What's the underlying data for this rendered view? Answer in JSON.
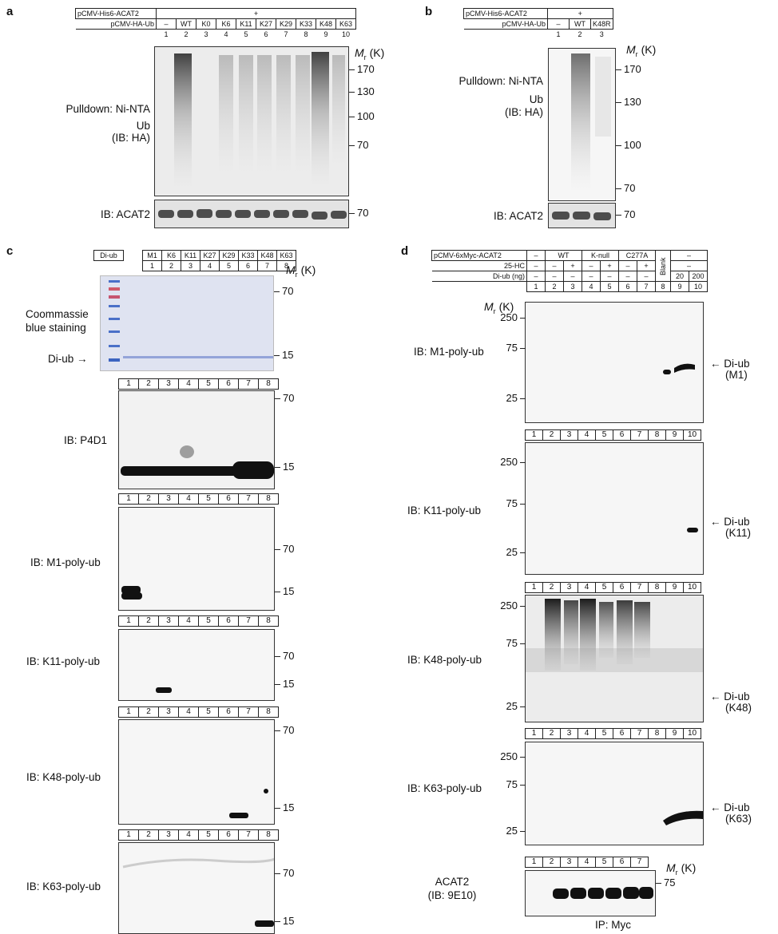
{
  "panels": {
    "a": {
      "letter": "a",
      "header": {
        "row1_label": "pCMV-His6-ACAT2",
        "row1_value": "+",
        "row2_label": "pCMV-HA-Ub",
        "lanes": [
          "–",
          "WT",
          "K0",
          "K6",
          "K11",
          "K27",
          "K29",
          "K33",
          "K48",
          "K63"
        ],
        "lane_numbers": [
          "1",
          "2",
          "3",
          "4",
          "5",
          "6",
          "7",
          "8",
          "9",
          "10"
        ]
      },
      "mr_label": "M",
      "mr_sub": "r",
      "mr_unit": "(K)",
      "markers": [
        "170",
        "130",
        "100",
        "70"
      ],
      "lower_marker": "70",
      "pulldown_label": "Pulldown: Ni-NTA",
      "ub_label": "Ub",
      "ib_ha_label": "(IB: HA)",
      "ib_acat2_label": "IB: ACAT2"
    },
    "b": {
      "letter": "b",
      "header": {
        "row1_label": "pCMV-His6-ACAT2",
        "row1_value": "+",
        "row2_label": "pCMV-HA-Ub",
        "lanes": [
          "–",
          "WT",
          "K48R"
        ],
        "lane_numbers": [
          "1",
          "2",
          "3"
        ]
      },
      "mr_label": "M",
      "mr_sub": "r",
      "mr_unit": "(K)",
      "markers": [
        "170",
        "130",
        "100",
        "70"
      ],
      "lower_marker": "70",
      "pulldown_label": "Pulldown: Ni-NTA",
      "ub_label": "Ub",
      "ib_ha_label": "(IB: HA)",
      "ib_acat2_label": "IB: ACAT2"
    },
    "c": {
      "letter": "c",
      "header": {
        "row_label": "Di-ub",
        "lanes": [
          "M1",
          "K6",
          "K11",
          "K27",
          "K29",
          "K33",
          "K48",
          "K63"
        ],
        "lane_numbers": [
          "1",
          "2",
          "3",
          "4",
          "5",
          "6",
          "7",
          "8"
        ]
      },
      "mr_label": "M",
      "mr_sub": "r",
      "mr_unit": "(K)",
      "coomassie_label_1": "Coommassie",
      "coomassie_label_2": "blue staining",
      "diub_label": "Di-ub",
      "diub_arrow": "→",
      "markers": [
        "70",
        "15"
      ],
      "blots": [
        {
          "label": "IB: P4D1"
        },
        {
          "label": "IB: M1-poly-ub"
        },
        {
          "label": "IB: K11-poly-ub"
        },
        {
          "label": "IB: K48-poly-ub"
        },
        {
          "label": "IB: K63-poly-ub"
        }
      ]
    },
    "d": {
      "letter": "d",
      "header": {
        "row1_label": "pCMV-6xMyc-ACAT2",
        "row1_groups": [
          "–",
          "WT",
          "K-null",
          "C277A",
          "Blank",
          "–"
        ],
        "row2_label": "25-HC",
        "row2_values": [
          "–",
          "–",
          "+",
          "–",
          "+",
          "–",
          "+",
          "–"
        ],
        "row3_label": "Di-ub (ng)",
        "row3_values": [
          "–",
          "–",
          "–",
          "–",
          "–",
          "–",
          "–",
          "20",
          "200"
        ],
        "lane_numbers": [
          "1",
          "2",
          "3",
          "4",
          "5",
          "6",
          "7",
          "8",
          "9",
          "10"
        ]
      },
      "mr_label": "M",
      "mr_sub": "r",
      "mr_unit": "(K)",
      "markers": [
        "250",
        "75",
        "25"
      ],
      "blots": [
        {
          "label": "IB: M1-poly-ub",
          "diub": "Di-ub",
          "diub_type": "(M1)"
        },
        {
          "label": "IB: K11-poly-ub",
          "diub": "Di-ub",
          "diub_type": "(K11)"
        },
        {
          "label": "IB: K48-poly-ub",
          "diub": "Di-ub",
          "diub_type": "(K48)"
        },
        {
          "label": "IB: K63-poly-ub",
          "diub": "Di-ub",
          "diub_type": "(K63)"
        }
      ],
      "arrow": "←",
      "acat2_label_1": "ACAT2",
      "acat2_label_2": "(IB: 9E10)",
      "acat2_marker": "75",
      "acat2_lanes": [
        "1",
        "2",
        "3",
        "4",
        "5",
        "6",
        "7"
      ],
      "ip_label": "IP: Myc"
    }
  }
}
